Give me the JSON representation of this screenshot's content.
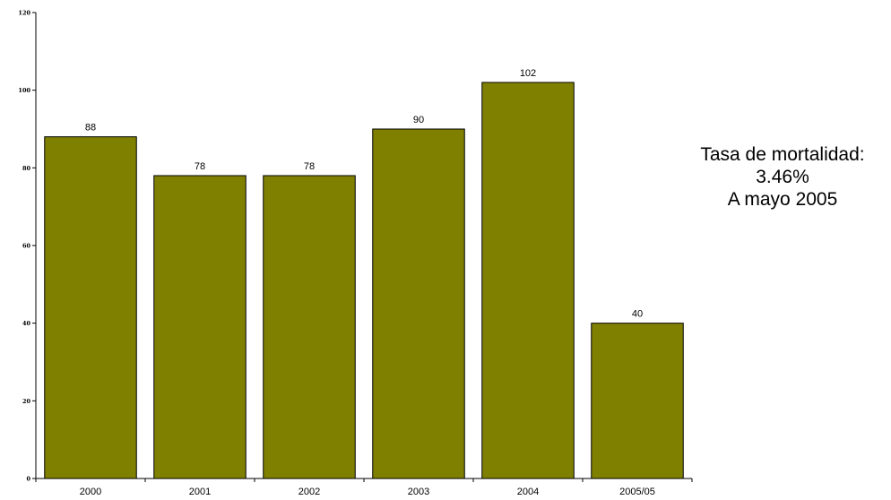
{
  "chart_data": {
    "type": "bar",
    "categories": [
      "2000",
      "2001",
      "2002",
      "2003",
      "2004",
      "2005/05"
    ],
    "values": [
      88,
      78,
      78,
      90,
      102,
      40
    ],
    "ylim": [
      0,
      120
    ],
    "yticks": [
      0,
      20,
      40,
      60,
      80,
      100,
      120
    ],
    "bar_color": "#808000",
    "grid": false,
    "title": "",
    "xlabel": "",
    "ylabel": ""
  },
  "annotation": {
    "line1": "Tasa de mortalidad:",
    "line2": "3.46%",
    "line3": "A mayo 2005"
  }
}
